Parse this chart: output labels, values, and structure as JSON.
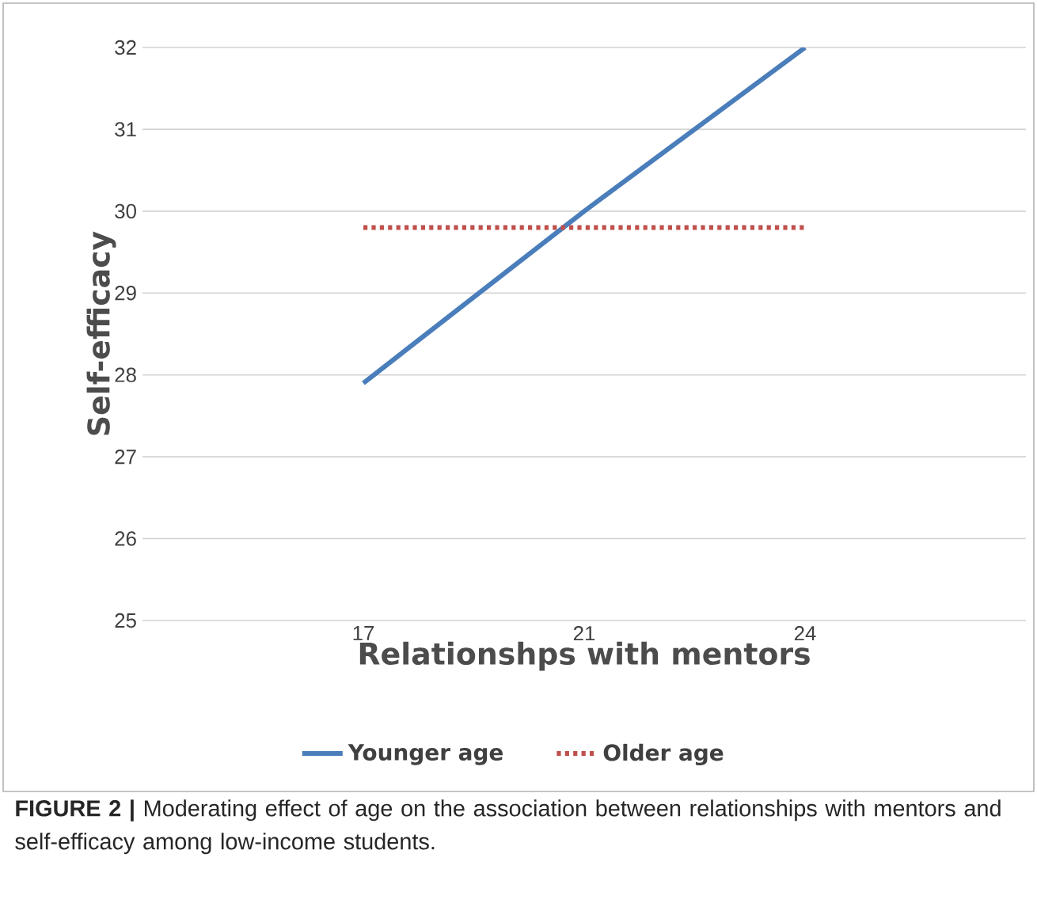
{
  "chart_data": {
    "type": "line",
    "xlabel": "Relationshps with mentors",
    "ylabel": "Self-efficacy",
    "categories": [
      "17",
      "21",
      "24"
    ],
    "series": [
      {
        "name": "Younger age",
        "color": "#4a7ebb",
        "values": [
          27.9,
          30.0,
          32.0
        ],
        "line_style": "solid"
      },
      {
        "name": "Older age",
        "color": "#c0504d",
        "values": [
          29.8,
          29.8,
          29.8
        ],
        "line_style": "dotted"
      }
    ],
    "ylim": [
      25,
      32
    ],
    "yticks": [
      25,
      26,
      27,
      28,
      29,
      30,
      31,
      32
    ],
    "grid": "y",
    "legend": "bottom",
    "marker": "none",
    "annotations": [
      "**FIGURE 2 |** Moderating effect of age on the association between relationships with mentors and self-efficacy among low-income students."
    ]
  }
}
